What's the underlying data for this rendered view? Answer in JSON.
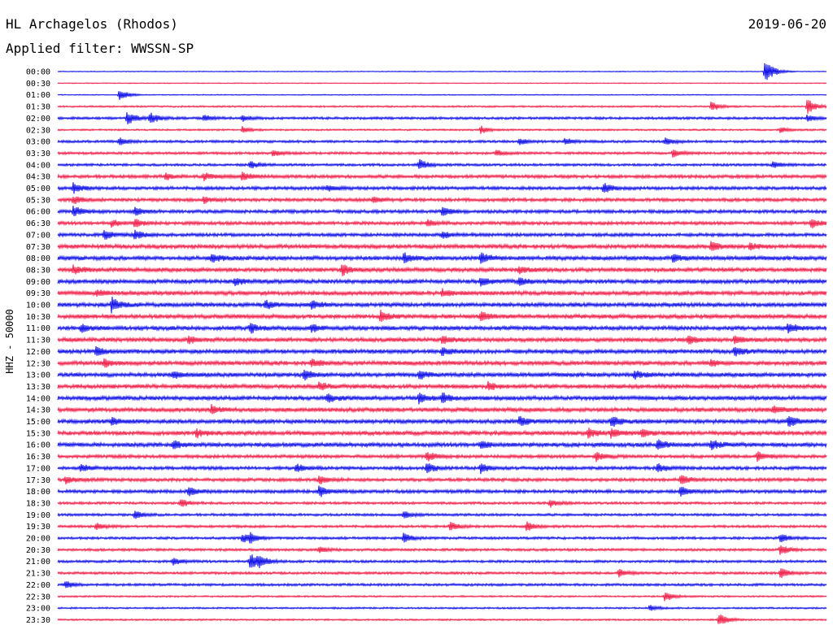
{
  "header": {
    "station": "HL Archagelos (Rhodos)",
    "date": "2019-06-20",
    "filter": "Applied filter: WWSSN-SP",
    "channel_label": "HHZ - 50000"
  },
  "chart_data": {
    "type": "line",
    "description_kind": "helicorder",
    "rows": [
      "00:00",
      "00:30",
      "01:00",
      "01:30",
      "02:00",
      "02:30",
      "03:00",
      "03:30",
      "04:00",
      "04:30",
      "05:00",
      "05:30",
      "06:00",
      "06:30",
      "07:00",
      "07:30",
      "08:00",
      "08:30",
      "09:00",
      "09:30",
      "10:00",
      "10:30",
      "11:00",
      "11:30",
      "12:00",
      "12:30",
      "13:00",
      "13:30",
      "14:00",
      "14:30",
      "15:00",
      "15:30",
      "16:00",
      "16:30",
      "17:00",
      "17:30",
      "18:00",
      "18:30",
      "19:00",
      "19:30",
      "20:00",
      "20:30",
      "21:00",
      "21:30",
      "22:00",
      "22:30",
      "23:00",
      "23:30"
    ],
    "colors": [
      "#1010e8",
      "#f0204a"
    ],
    "noise_level": [
      1,
      1,
      1,
      2,
      3,
      2,
      3,
      3,
      3,
      4,
      4,
      4,
      4,
      4,
      4,
      5,
      5,
      5,
      5,
      5,
      5,
      5,
      5,
      5,
      5,
      5,
      5,
      5,
      5,
      5,
      5,
      5,
      5,
      4,
      4,
      4,
      4,
      3,
      3,
      3,
      3,
      3,
      3,
      3,
      3,
      2,
      2,
      2
    ],
    "events": [
      {
        "row": 0,
        "pos": 0.92,
        "amp": 35
      },
      {
        "row": 2,
        "pos": 0.08,
        "amp": 16
      },
      {
        "row": 3,
        "pos": 0.85,
        "amp": 12
      },
      {
        "row": 3,
        "pos": 0.975,
        "amp": 20
      },
      {
        "row": 4,
        "pos": 0.09,
        "amp": 18
      },
      {
        "row": 4,
        "pos": 0.12,
        "amp": 16
      },
      {
        "row": 4,
        "pos": 0.19,
        "amp": 8
      },
      {
        "row": 4,
        "pos": 0.24,
        "amp": 8
      },
      {
        "row": 4,
        "pos": 0.975,
        "amp": 8
      },
      {
        "row": 5,
        "pos": 0.24,
        "amp": 8
      },
      {
        "row": 5,
        "pos": 0.55,
        "amp": 10
      },
      {
        "row": 5,
        "pos": 0.94,
        "amp": 8
      },
      {
        "row": 6,
        "pos": 0.08,
        "amp": 10
      },
      {
        "row": 6,
        "pos": 0.6,
        "amp": 9
      },
      {
        "row": 6,
        "pos": 0.66,
        "amp": 9
      },
      {
        "row": 6,
        "pos": 0.79,
        "amp": 9
      },
      {
        "row": 7,
        "pos": 0.28,
        "amp": 8
      },
      {
        "row": 7,
        "pos": 0.57,
        "amp": 8
      },
      {
        "row": 7,
        "pos": 0.8,
        "amp": 10
      },
      {
        "row": 8,
        "pos": 0.25,
        "amp": 10
      },
      {
        "row": 8,
        "pos": 0.47,
        "amp": 14
      },
      {
        "row": 8,
        "pos": 0.93,
        "amp": 9
      },
      {
        "row": 9,
        "pos": 0.14,
        "amp": 8
      },
      {
        "row": 9,
        "pos": 0.19,
        "amp": 10
      },
      {
        "row": 9,
        "pos": 0.24,
        "amp": 12
      },
      {
        "row": 10,
        "pos": 0.02,
        "amp": 12
      },
      {
        "row": 10,
        "pos": 0.35,
        "amp": 8
      },
      {
        "row": 10,
        "pos": 0.71,
        "amp": 12
      },
      {
        "row": 11,
        "pos": 0.02,
        "amp": 10
      },
      {
        "row": 11,
        "pos": 0.19,
        "amp": 8
      },
      {
        "row": 11,
        "pos": 0.41,
        "amp": 8
      },
      {
        "row": 12,
        "pos": 0.02,
        "amp": 14
      },
      {
        "row": 12,
        "pos": 0.1,
        "amp": 10
      },
      {
        "row": 12,
        "pos": 0.5,
        "amp": 12
      },
      {
        "row": 13,
        "pos": 0.07,
        "amp": 8
      },
      {
        "row": 13,
        "pos": 0.1,
        "amp": 10
      },
      {
        "row": 13,
        "pos": 0.48,
        "amp": 8
      },
      {
        "row": 13,
        "pos": 0.98,
        "amp": 12
      },
      {
        "row": 14,
        "pos": 0.06,
        "amp": 14
      },
      {
        "row": 14,
        "pos": 0.1,
        "amp": 12
      },
      {
        "row": 14,
        "pos": 0.5,
        "amp": 10
      },
      {
        "row": 15,
        "pos": 0.85,
        "amp": 12
      },
      {
        "row": 15,
        "pos": 0.9,
        "amp": 9
      },
      {
        "row": 16,
        "pos": 0.2,
        "amp": 12
      },
      {
        "row": 16,
        "pos": 0.45,
        "amp": 14
      },
      {
        "row": 16,
        "pos": 0.55,
        "amp": 14
      },
      {
        "row": 16,
        "pos": 0.8,
        "amp": 10
      },
      {
        "row": 17,
        "pos": 0.02,
        "amp": 10
      },
      {
        "row": 17,
        "pos": 0.37,
        "amp": 14
      },
      {
        "row": 17,
        "pos": 0.6,
        "amp": 9
      },
      {
        "row": 18,
        "pos": 0.23,
        "amp": 9
      },
      {
        "row": 18,
        "pos": 0.55,
        "amp": 12
      },
      {
        "row": 18,
        "pos": 0.6,
        "amp": 9
      },
      {
        "row": 19,
        "pos": 0.05,
        "amp": 8
      },
      {
        "row": 19,
        "pos": 0.5,
        "amp": 9
      },
      {
        "row": 20,
        "pos": 0.07,
        "amp": 18
      },
      {
        "row": 20,
        "pos": 0.27,
        "amp": 10
      },
      {
        "row": 20,
        "pos": 0.33,
        "amp": 12
      },
      {
        "row": 21,
        "pos": 0.42,
        "amp": 14
      },
      {
        "row": 21,
        "pos": 0.55,
        "amp": 12
      },
      {
        "row": 22,
        "pos": 0.03,
        "amp": 10
      },
      {
        "row": 22,
        "pos": 0.25,
        "amp": 12
      },
      {
        "row": 22,
        "pos": 0.33,
        "amp": 10
      },
      {
        "row": 22,
        "pos": 0.95,
        "amp": 12
      },
      {
        "row": 23,
        "pos": 0.17,
        "amp": 10
      },
      {
        "row": 23,
        "pos": 0.5,
        "amp": 10
      },
      {
        "row": 23,
        "pos": 0.82,
        "amp": 10
      },
      {
        "row": 23,
        "pos": 0.88,
        "amp": 10
      },
      {
        "row": 24,
        "pos": 0.05,
        "amp": 12
      },
      {
        "row": 24,
        "pos": 0.5,
        "amp": 10
      },
      {
        "row": 24,
        "pos": 0.88,
        "amp": 12
      },
      {
        "row": 25,
        "pos": 0.06,
        "amp": 10
      },
      {
        "row": 25,
        "pos": 0.33,
        "amp": 10
      },
      {
        "row": 25,
        "pos": 0.85,
        "amp": 9
      },
      {
        "row": 26,
        "pos": 0.15,
        "amp": 10
      },
      {
        "row": 26,
        "pos": 0.32,
        "amp": 12
      },
      {
        "row": 26,
        "pos": 0.47,
        "amp": 10
      },
      {
        "row": 26,
        "pos": 0.75,
        "amp": 10
      },
      {
        "row": 27,
        "pos": 0.34,
        "amp": 10
      },
      {
        "row": 27,
        "pos": 0.56,
        "amp": 10
      },
      {
        "row": 28,
        "pos": 0.35,
        "amp": 12
      },
      {
        "row": 28,
        "pos": 0.47,
        "amp": 12
      },
      {
        "row": 28,
        "pos": 0.5,
        "amp": 12
      },
      {
        "row": 29,
        "pos": 0.2,
        "amp": 10
      },
      {
        "row": 29,
        "pos": 0.93,
        "amp": 10
      },
      {
        "row": 30,
        "pos": 0.07,
        "amp": 9
      },
      {
        "row": 30,
        "pos": 0.6,
        "amp": 12
      },
      {
        "row": 30,
        "pos": 0.72,
        "amp": 14
      },
      {
        "row": 30,
        "pos": 0.95,
        "amp": 14
      },
      {
        "row": 31,
        "pos": 0.18,
        "amp": 10
      },
      {
        "row": 31,
        "pos": 0.69,
        "amp": 12
      },
      {
        "row": 31,
        "pos": 0.72,
        "amp": 12
      },
      {
        "row": 31,
        "pos": 0.76,
        "amp": 10
      },
      {
        "row": 32,
        "pos": 0.15,
        "amp": 10
      },
      {
        "row": 32,
        "pos": 0.55,
        "amp": 10
      },
      {
        "row": 32,
        "pos": 0.78,
        "amp": 12
      },
      {
        "row": 32,
        "pos": 0.85,
        "amp": 14
      },
      {
        "row": 33,
        "pos": 0.48,
        "amp": 12
      },
      {
        "row": 33,
        "pos": 0.7,
        "amp": 12
      },
      {
        "row": 33,
        "pos": 0.91,
        "amp": 12
      },
      {
        "row": 34,
        "pos": 0.03,
        "amp": 9
      },
      {
        "row": 34,
        "pos": 0.31,
        "amp": 10
      },
      {
        "row": 34,
        "pos": 0.48,
        "amp": 14
      },
      {
        "row": 34,
        "pos": 0.55,
        "amp": 12
      },
      {
        "row": 34,
        "pos": 0.78,
        "amp": 12
      },
      {
        "row": 35,
        "pos": 0.01,
        "amp": 10
      },
      {
        "row": 35,
        "pos": 0.34,
        "amp": 10
      },
      {
        "row": 35,
        "pos": 0.81,
        "amp": 12
      },
      {
        "row": 36,
        "pos": 0.17,
        "amp": 12
      },
      {
        "row": 36,
        "pos": 0.34,
        "amp": 14
      },
      {
        "row": 36,
        "pos": 0.81,
        "amp": 12
      },
      {
        "row": 37,
        "pos": 0.16,
        "amp": 10
      },
      {
        "row": 37,
        "pos": 0.64,
        "amp": 10
      },
      {
        "row": 38,
        "pos": 0.1,
        "amp": 10
      },
      {
        "row": 38,
        "pos": 0.45,
        "amp": 9
      },
      {
        "row": 39,
        "pos": 0.05,
        "amp": 9
      },
      {
        "row": 39,
        "pos": 0.51,
        "amp": 12
      },
      {
        "row": 39,
        "pos": 0.61,
        "amp": 12
      },
      {
        "row": 40,
        "pos": 0.24,
        "amp": 12
      },
      {
        "row": 40,
        "pos": 0.25,
        "amp": 10
      },
      {
        "row": 40,
        "pos": 0.45,
        "amp": 14
      },
      {
        "row": 40,
        "pos": 0.94,
        "amp": 12
      },
      {
        "row": 41,
        "pos": 0.34,
        "amp": 8
      },
      {
        "row": 41,
        "pos": 0.94,
        "amp": 14
      },
      {
        "row": 42,
        "pos": 0.15,
        "amp": 10
      },
      {
        "row": 42,
        "pos": 0.25,
        "amp": 20
      },
      {
        "row": 42,
        "pos": 0.26,
        "amp": 14
      },
      {
        "row": 43,
        "pos": 0.94,
        "amp": 14
      },
      {
        "row": 43,
        "pos": 0.73,
        "amp": 10
      },
      {
        "row": 44,
        "pos": 0.01,
        "amp": 8
      },
      {
        "row": 45,
        "pos": 0.79,
        "amp": 14
      },
      {
        "row": 46,
        "pos": 0.77,
        "amp": 8
      },
      {
        "row": 47,
        "pos": 0.86,
        "amp": 18
      }
    ]
  }
}
